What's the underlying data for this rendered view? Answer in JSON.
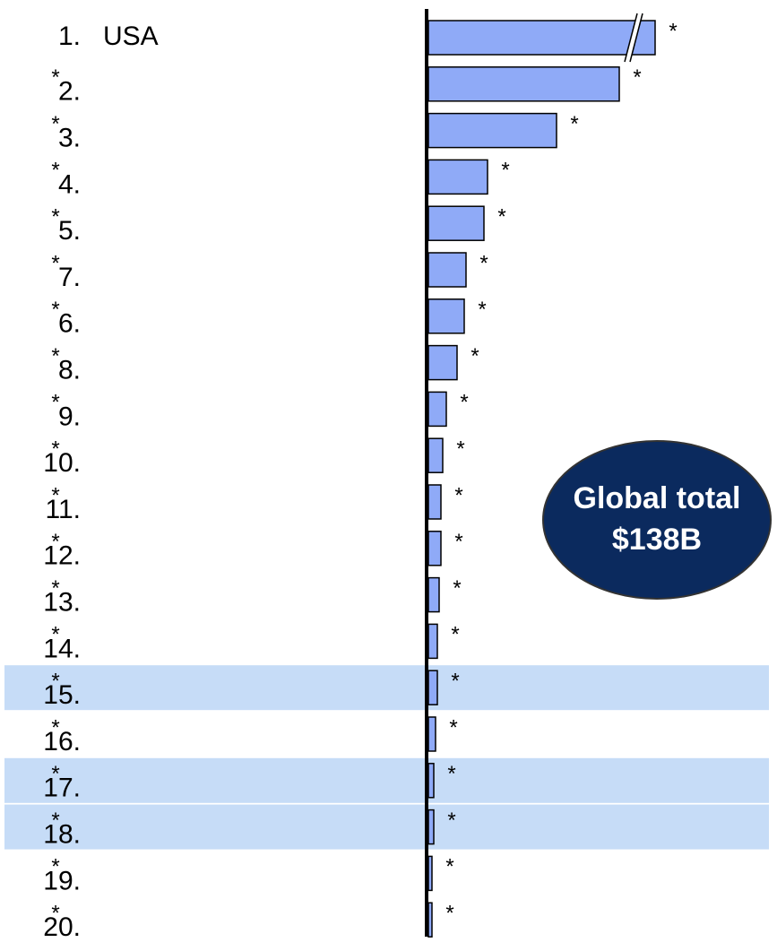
{
  "chart_data": {
    "type": "bar",
    "orientation": "horizontal",
    "categories": [
      "1.",
      "2.",
      "3.",
      "4.",
      "5.",
      "7.",
      "6.",
      "8.",
      "9.",
      "10.",
      "11.",
      "12.",
      "13.",
      "14.",
      "15.",
      "16.",
      "17.",
      "18.",
      "19.",
      "20."
    ],
    "names": [
      "USA",
      "*",
      "*",
      "*",
      "*",
      "*",
      "*",
      "*",
      "*",
      "*",
      "*",
      "*",
      "*",
      "*",
      "*",
      "*",
      "*",
      "*",
      "*",
      "*"
    ],
    "values": [
      253,
      213,
      143,
      66,
      62,
      42,
      40,
      32,
      20,
      16,
      14,
      14,
      12,
      10,
      10,
      8,
      6,
      6,
      4,
      4
    ],
    "value_labels": [
      "*",
      "*",
      "*",
      "*",
      "*",
      "*",
      "*",
      "*",
      "*",
      "*",
      "*",
      "*",
      "*",
      "*",
      "*",
      "*",
      "*",
      "*",
      "*",
      "*"
    ],
    "highlighted": [
      false,
      false,
      false,
      false,
      false,
      false,
      false,
      false,
      false,
      false,
      false,
      false,
      false,
      false,
      true,
      false,
      true,
      true,
      false,
      false
    ],
    "color": "#8faaf7",
    "highlight_color": "#c6dcf7",
    "annotation": [
      "Global total",
      "$138B"
    ]
  }
}
